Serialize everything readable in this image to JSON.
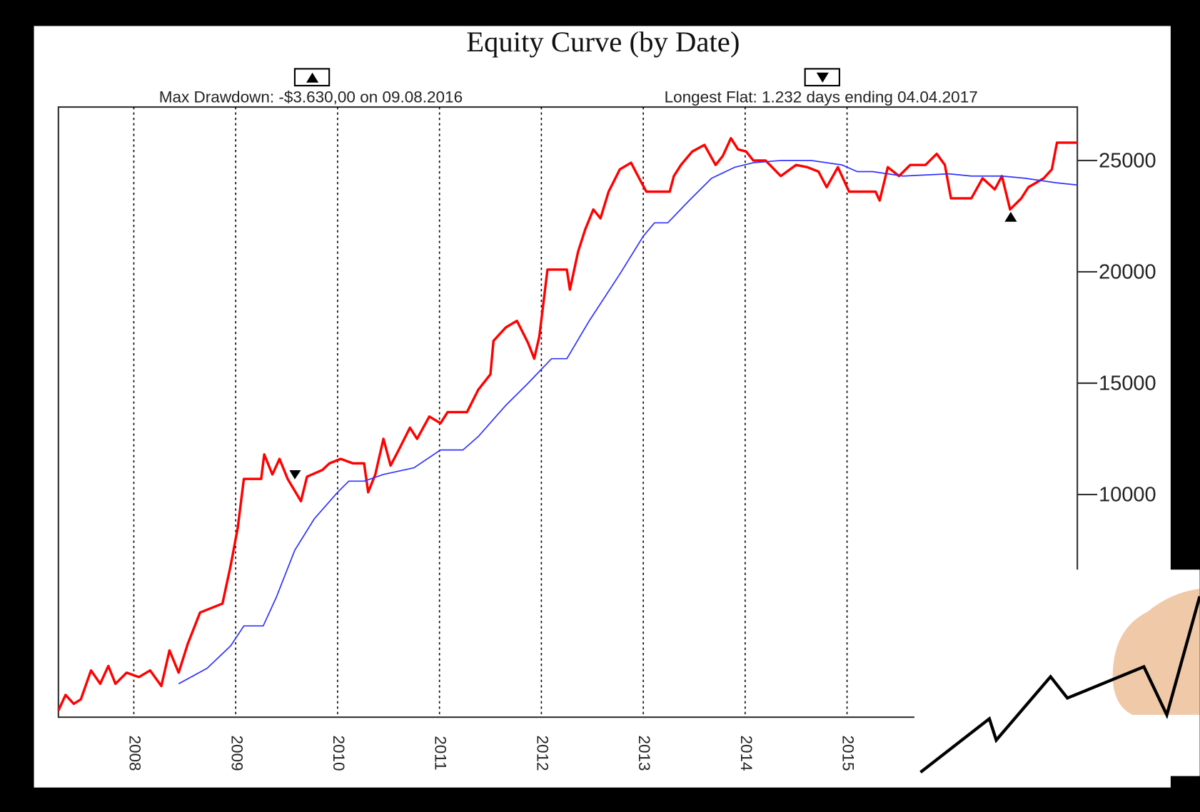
{
  "chart_data": {
    "type": "line",
    "title": "Equity Curve (by Date)",
    "annotations": [
      "Max Drawdown: -$3.630,00 on 09.08.2016",
      "Longest Flat: 1.232 days ending 04.04.2017"
    ],
    "series": [
      {
        "color": "#ff0000",
        "x": [
          2007.26,
          2007.33,
          2007.41,
          2007.48,
          2007.58,
          2007.67,
          2007.75,
          2007.82,
          2007.93,
          2008.05,
          2008.16,
          2008.27,
          2008.35,
          2008.44,
          2008.53,
          2008.65,
          2008.76,
          2008.87,
          2008.95,
          2009.02,
          2009.08,
          2009.25,
          2009.28,
          2009.36,
          2009.43,
          2009.51,
          2009.64,
          2009.7,
          2009.85,
          2009.92,
          2010.03,
          2010.15,
          2010.26,
          2010.3,
          2010.37,
          2010.45,
          2010.52,
          2010.6,
          2010.71,
          2010.78,
          2010.9,
          2011.01,
          2011.08,
          2011.27,
          2011.38,
          2011.5,
          2011.53,
          2011.65,
          2011.76,
          2011.87,
          2011.93,
          2011.98,
          2012.06,
          2012.25,
          2012.28,
          2012.36,
          2012.43,
          2012.51,
          2012.58,
          2012.66,
          2012.77,
          2012.88,
          2012.96,
          2013.03,
          2013.26,
          2013.3,
          2013.37,
          2013.48,
          2013.6,
          2013.71,
          2013.78,
          2013.86,
          2013.93,
          2014.01,
          2014.08,
          2014.2,
          2014.35,
          2014.5,
          2014.61,
          2014.72,
          2014.8,
          2014.91,
          2015.02,
          2015.28,
          2015.32,
          2015.4,
          2015.51,
          2015.62,
          2015.77,
          2015.88,
          2015.96,
          2016.02,
          2016.22,
          2016.33,
          2016.45,
          2016.52,
          2016.6,
          2016.71,
          2016.78,
          2016.93,
          2017.01,
          2017.06,
          2017.26
        ],
        "values": [
          300,
          1000,
          600,
          800,
          2100,
          1500,
          2300,
          1500,
          2000,
          1800,
          2100,
          1400,
          3000,
          2000,
          3300,
          4700,
          4900,
          5100,
          6800,
          8500,
          10700,
          10700,
          11800,
          10900,
          11600,
          10700,
          9700,
          10800,
          11100,
          11400,
          11600,
          11400,
          11400,
          10100,
          10900,
          12500,
          11300,
          12000,
          13000,
          12500,
          13500,
          13200,
          13700,
          13700,
          14700,
          15400,
          16900,
          17500,
          17800,
          16800,
          16100,
          17100,
          20100,
          20100,
          19200,
          20900,
          21900,
          22800,
          22400,
          23600,
          24600,
          24900,
          24200,
          23600,
          23600,
          24300,
          24800,
          25400,
          25700,
          24800,
          25200,
          26000,
          25500,
          25400,
          25000,
          25000,
          24300,
          24800,
          24700,
          24500,
          23800,
          24700,
          23600,
          23600,
          23200,
          24700,
          24300,
          24800,
          24800,
          25300,
          24800,
          23300,
          23300,
          24200,
          23700,
          24300,
          22800,
          23300,
          23800,
          24200,
          24600,
          25800,
          25800
        ]
      },
      {
        "color": "#3333ff",
        "x": [
          2008.44,
          2008.72,
          2008.95,
          2009.08,
          2009.27,
          2009.4,
          2009.58,
          2009.77,
          2010.0,
          2010.11,
          2010.26,
          2010.45,
          2010.75,
          2011.01,
          2011.23,
          2011.38,
          2011.65,
          2011.87,
          2012.1,
          2012.25,
          2012.47,
          2012.77,
          2013.0,
          2013.11,
          2013.24,
          2013.45,
          2013.67,
          2013.9,
          2014.08,
          2014.35,
          2014.65,
          2014.95,
          2015.1,
          2015.25,
          2015.55,
          2016.0,
          2016.22,
          2016.52,
          2016.75,
          2017.05,
          2017.26
        ],
        "values": [
          1500,
          2200,
          3200,
          4100,
          4100,
          5400,
          7500,
          8900,
          10100,
          10600,
          10600,
          10900,
          11200,
          12000,
          12000,
          12600,
          14000,
          15000,
          16100,
          16100,
          17800,
          19900,
          21600,
          22200,
          22200,
          23200,
          24200,
          24700,
          24900,
          25000,
          25000,
          24800,
          24500,
          24500,
          24300,
          24400,
          24300,
          24300,
          24200,
          24000,
          23900
        ]
      }
    ],
    "xlim": [
      2007.26,
      2017.26
    ],
    "xticks": [
      2008,
      2009,
      2010,
      2011,
      2012,
      2013,
      2014,
      2015
    ],
    "ylim": [
      0,
      27400
    ],
    "yticks": [
      10000,
      15000,
      20000,
      25000
    ],
    "grid": true
  }
}
